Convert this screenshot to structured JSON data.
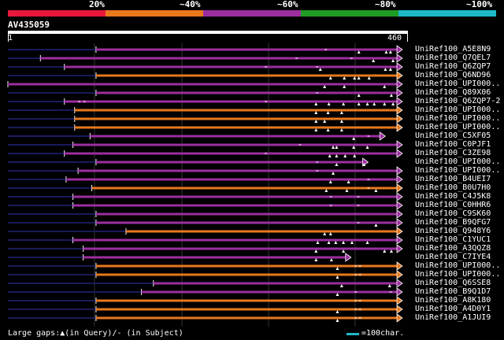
{
  "legend": {
    "segments": [
      {
        "color": "#e8183c"
      },
      {
        "color": "#e8781c"
      },
      {
        "color": "#9c2ea0"
      },
      {
        "color": "#1e9c24"
      },
      {
        "color": "#1fb8c8"
      }
    ],
    "labels": [
      "20%",
      "~40%",
      "~60%",
      "~80%",
      "~100%"
    ]
  },
  "query": {
    "id": "AV435059",
    "start": "1",
    "end": "460",
    "length": 460
  },
  "colors": {
    "purple": "#9c2ea0",
    "orange": "#e8781c",
    "gap": "#ffffff",
    "tail": "#1a1a5a"
  },
  "hits": [
    {
      "label": "UniRef100_A5E8N9",
      "color": "purple",
      "start": 103,
      "end": 460,
      "lead": 0,
      "gaps": [
        410,
        442,
        447
      ],
      "minus": [
        370
      ]
    },
    {
      "label": "UniRef100_Q7QEL7",
      "color": "purple",
      "start": 38,
      "end": 460,
      "lead": 0,
      "gaps": [
        427,
        450
      ],
      "minus": [
        336,
        400
      ]
    },
    {
      "label": "UniRef100_Q6ZQP7",
      "color": "purple",
      "start": 66,
      "end": 460,
      "lead": 0,
      "gaps": [
        365,
        441,
        447
      ],
      "minus": [
        300,
        360
      ]
    },
    {
      "label": "UniRef100_Q6ND96",
      "color": "orange",
      "start": 103,
      "end": 460,
      "lead": 0,
      "gaps": [
        377,
        393,
        405,
        410,
        422
      ],
      "minus": []
    },
    {
      "label": "UniRef100_UPI000..",
      "color": "purple",
      "start": 0,
      "end": 460,
      "lead": 0,
      "gaps": [
        370,
        393,
        440
      ],
      "minus": []
    },
    {
      "label": "UniRef100_Q89X06",
      "color": "purple",
      "start": 103,
      "end": 460,
      "lead": 0,
      "gaps": [
        410,
        448
      ],
      "minus": [
        360
      ]
    },
    {
      "label": "UniRef100_Q6ZQP7-2",
      "color": "purple",
      "start": 66,
      "end": 460,
      "lead": 0,
      "gaps": [
        360,
        375,
        392,
        410,
        420,
        428,
        440,
        450
      ],
      "minus": [
        82,
        88,
        300
      ]
    },
    {
      "label": "UniRef100_UPI000..",
      "color": "orange",
      "start": 78,
      "end": 460,
      "lead": 0,
      "gaps": [
        360,
        374,
        390
      ],
      "minus": []
    },
    {
      "label": "UniRef100_UPI000..",
      "color": "orange",
      "start": 78,
      "end": 460,
      "lead": 0,
      "gaps": [
        360,
        370,
        390
      ],
      "minus": []
    },
    {
      "label": "UniRef100_UPI000..",
      "color": "orange",
      "start": 78,
      "end": 460,
      "lead": 0,
      "gaps": [
        360,
        374,
        390
      ],
      "minus": []
    },
    {
      "label": "UniRef100_C5XF05",
      "color": "purple",
      "start": 96,
      "end": 440,
      "lead": 0,
      "gaps": [
        404
      ],
      "minus": [
        420
      ]
    },
    {
      "label": "UniRef100_C0PJF1",
      "color": "purple",
      "start": 76,
      "end": 460,
      "lead": 0,
      "gaps": [
        380,
        384,
        404,
        420
      ],
      "minus": [
        340
      ]
    },
    {
      "label": "UniRef100_C3ZE98",
      "color": "purple",
      "start": 66,
      "end": 460,
      "lead": 0,
      "gaps": [
        376,
        384,
        394,
        405
      ],
      "minus": [
        300
      ]
    },
    {
      "label": "UniRef100_UPI000..",
      "color": "purple",
      "start": 103,
      "end": 420,
      "lead": 0,
      "gaps": [
        384,
        416
      ],
      "minus": [
        360
      ]
    },
    {
      "label": "UniRef100_UPI000..",
      "color": "purple",
      "start": 82,
      "end": 460,
      "lead": 0,
      "gaps": [
        380
      ],
      "minus": [
        360
      ]
    },
    {
      "label": "UniRef100_B4UEI7",
      "color": "purple",
      "start": 68,
      "end": 460,
      "lead": 0,
      "gaps": [
        377,
        398
      ],
      "minus": [
        420
      ]
    },
    {
      "label": "UniRef100_B0U7H0",
      "color": "orange",
      "start": 98,
      "end": 460,
      "lead": 0,
      "gaps": [
        372,
        396,
        430
      ],
      "minus": [
        420
      ]
    },
    {
      "label": "UniRef100_C4J5K8",
      "color": "purple",
      "start": 76,
      "end": 460,
      "lead": 0,
      "gaps": [],
      "minus": [
        376,
        408
      ]
    },
    {
      "label": "UniRef100_C0HHR6",
      "color": "purple",
      "start": 76,
      "end": 460,
      "lead": 0,
      "gaps": [],
      "minus": [
        376,
        408
      ]
    },
    {
      "label": "UniRef100_C9SK60",
      "color": "purple",
      "start": 103,
      "end": 460,
      "lead": 0,
      "gaps": [],
      "minus": []
    },
    {
      "label": "UniRef100_B9QFG7",
      "color": "purple",
      "start": 103,
      "end": 460,
      "lead": 0,
      "gaps": [
        430
      ],
      "minus": [
        408
      ]
    },
    {
      "label": "UniRef100_Q948Y6",
      "color": "orange",
      "start": 138,
      "end": 460,
      "lead": 0,
      "gaps": [
        370,
        377
      ],
      "minus": []
    },
    {
      "label": "UniRef100_C1YUC1",
      "color": "purple",
      "start": 76,
      "end": 460,
      "lead": 0,
      "gaps": [
        362,
        375,
        383,
        392,
        402,
        420
      ],
      "minus": []
    },
    {
      "label": "UniRef100_A3QQZ8",
      "color": "purple",
      "start": 88,
      "end": 460,
      "lead": 0,
      "gaps": [
        360,
        392,
        440,
        448
      ],
      "minus": []
    },
    {
      "label": "UniRef100_C7IYE4",
      "color": "purple",
      "start": 88,
      "end": 400,
      "lead": 0,
      "gaps": [
        360,
        378
      ],
      "minus": []
    },
    {
      "label": "UniRef100_UPI000..",
      "color": "orange",
      "start": 103,
      "end": 460,
      "lead": 0,
      "gaps": [
        385
      ],
      "minus": [
        405,
        410
      ]
    },
    {
      "label": "UniRef100_UPI000..",
      "color": "orange",
      "start": 103,
      "end": 460,
      "lead": 0,
      "gaps": [
        385
      ],
      "minus": [
        405,
        410
      ]
    },
    {
      "label": "UniRef100_Q6SSE8",
      "color": "purple",
      "start": 170,
      "end": 460,
      "lead": 0,
      "gaps": [
        390,
        446
      ],
      "minus": []
    },
    {
      "label": "UniRef100_B9Q1D7",
      "color": "purple",
      "start": 156,
      "end": 460,
      "lead": 0,
      "gaps": [
        385
      ],
      "minus": [
        405,
        446
      ]
    },
    {
      "label": "UniRef100_A8K180",
      "color": "orange",
      "start": 103,
      "end": 460,
      "lead": 0,
      "gaps": [],
      "minus": [
        405,
        410
      ]
    },
    {
      "label": "UniRef100_A4D0Y1",
      "color": "orange",
      "start": 103,
      "end": 460,
      "lead": 0,
      "gaps": [
        385
      ],
      "minus": [
        405,
        410
      ]
    },
    {
      "label": "UniRef100_A1JUI9",
      "color": "orange",
      "start": 103,
      "end": 460,
      "lead": 0,
      "gaps": [
        385
      ],
      "minus": [
        405,
        410
      ]
    }
  ],
  "footer": {
    "gaps_text": "Large gaps:▲(in Query)/- (in Subject)",
    "scale_text": "=100char."
  }
}
